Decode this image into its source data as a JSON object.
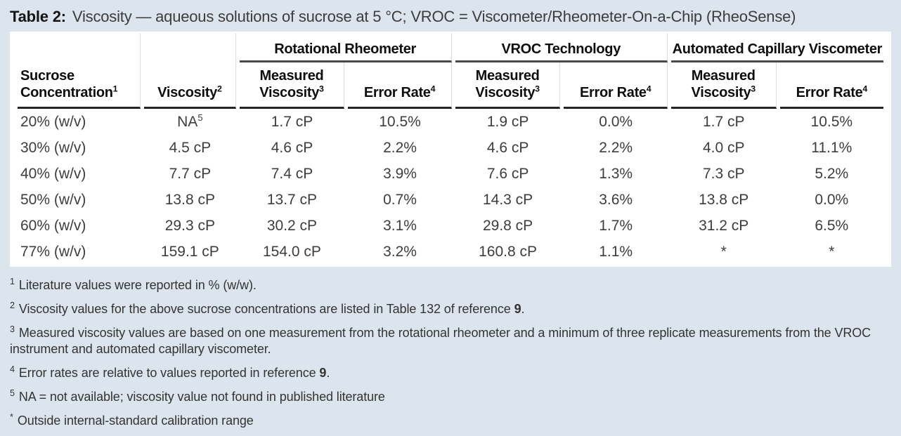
{
  "title": {
    "label": "Table 2:",
    "text": "Viscosity — aqueous solutions of sucrose at 5 °C; VROC = Viscometer/Rheometer-On-a-Chip (RheoSense)"
  },
  "colors": {
    "background": "#dce4ed",
    "card": "#ffffff",
    "rule_heavy": "#242424",
    "rule_group": "#4a4a4a",
    "text_dark": "#0e0e0e",
    "text_body": "#3d3d3d"
  },
  "table": {
    "groups": [
      {
        "label": "Rotational Rheometer"
      },
      {
        "label": "VROC Technology"
      },
      {
        "label": "Automated Capillary Viscometer"
      }
    ],
    "columns": [
      {
        "lines": [
          "Sucrose",
          "Concentration"
        ],
        "sup": "1",
        "align": "left"
      },
      {
        "lines": [
          "Viscosity"
        ],
        "sup": "2"
      },
      {
        "lines": [
          "Measured",
          "Viscosity"
        ],
        "sup": "3"
      },
      {
        "lines": [
          "Error Rate"
        ],
        "sup": "4"
      },
      {
        "lines": [
          "Measured",
          "Viscosity"
        ],
        "sup": "3"
      },
      {
        "lines": [
          "Error Rate"
        ],
        "sup": "4"
      },
      {
        "lines": [
          "Measured",
          "Viscosity"
        ],
        "sup": "3"
      },
      {
        "lines": [
          "Error Rate"
        ],
        "sup": "4"
      }
    ],
    "rows": [
      [
        "20% (w/v)",
        {
          "text": "NA",
          "sup": "5"
        },
        "1.7 cP",
        "10.5%",
        "1.9 cP",
        "0.0%",
        "1.7 cP",
        "10.5%"
      ],
      [
        "30% (w/v)",
        "4.5 cP",
        "4.6 cP",
        "2.2%",
        "4.6 cP",
        "2.2%",
        "4.0 cP",
        "11.1%"
      ],
      [
        "40% (w/v)",
        "7.7 cP",
        "7.4 cP",
        "3.9%",
        "7.6 cP",
        "1.3%",
        "7.3 cP",
        "5.2%"
      ],
      [
        "50% (w/v)",
        "13.8 cP",
        "13.7 cP",
        "0.7%",
        "14.3 cP",
        "3.6%",
        "13.8 cP",
        "0.0%"
      ],
      [
        "60% (w/v)",
        "29.3 cP",
        "30.2 cP",
        "3.1%",
        "29.8 cP",
        "1.7%",
        "31.2 cP",
        "6.5%"
      ],
      [
        "77% (w/v)",
        "159.1 cP",
        "154.0 cP",
        "3.2%",
        "160.8 cP",
        "1.1%",
        "*",
        "*"
      ]
    ]
  },
  "footnotes": [
    {
      "marker": "1",
      "segments": [
        {
          "text": "Literature values were reported in % (w/w)."
        }
      ]
    },
    {
      "marker": "2",
      "segments": [
        {
          "text": "Viscosity values for the above sucrose concentrations are listed in Table 132 of reference "
        },
        {
          "text": "9",
          "bold": true
        },
        {
          "text": "."
        }
      ]
    },
    {
      "marker": "3",
      "segments": [
        {
          "text": "Measured viscosity values are based on one measurement from the rotational rheometer and a minimum of three replicate measurements from the VROC instrument and automated capillary viscometer."
        }
      ]
    },
    {
      "marker": "4",
      "segments": [
        {
          "text": "Error rates are relative to values reported in reference "
        },
        {
          "text": "9",
          "bold": true
        },
        {
          "text": "."
        }
      ]
    },
    {
      "marker": "5",
      "segments": [
        {
          "text": "NA = not available; viscosity value not found in published literature"
        }
      ]
    },
    {
      "marker": "*",
      "segments": [
        {
          "text": "Outside internal-standard calibration range"
        }
      ]
    }
  ]
}
